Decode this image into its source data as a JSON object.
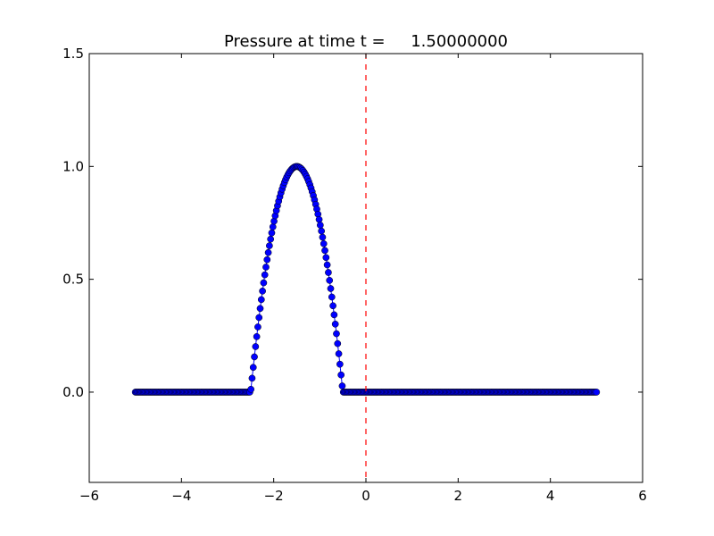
{
  "chart_data": {
    "type": "line",
    "title": "Pressure at time t =     1.50000000",
    "xlabel": "",
    "ylabel": "",
    "xlim": [
      -6,
      6
    ],
    "ylim": [
      -0.4,
      1.5
    ],
    "xticks": [
      -6,
      -4,
      -2,
      0,
      2,
      4,
      6
    ],
    "xtick_labels": [
      "−6",
      "−4",
      "−2",
      "0",
      "2",
      "4",
      "6"
    ],
    "yticks": [
      0.0,
      0.5,
      1.0,
      1.5
    ],
    "ytick_labels": [
      "0.0",
      "0.5",
      "1.0",
      "1.5"
    ],
    "grid": false,
    "colors": {
      "series": "#0000ff",
      "marker_edge": "#000000",
      "reference_line": "#ff0000"
    },
    "series": [
      {
        "style": "line-with-circle-markers",
        "x_start": -5.0,
        "x_end": 5.0,
        "num_points": 400,
        "pulse_center": -1.5,
        "pulse_half_width": 1.0,
        "pulse_shape": "1 - ((x - center) / half_width)^2 inside pulse, 0 outside",
        "pulse_peak": 1.0
      }
    ],
    "reference_lines": [
      {
        "orientation": "vertical",
        "x": 0,
        "style": "dashed"
      }
    ]
  }
}
